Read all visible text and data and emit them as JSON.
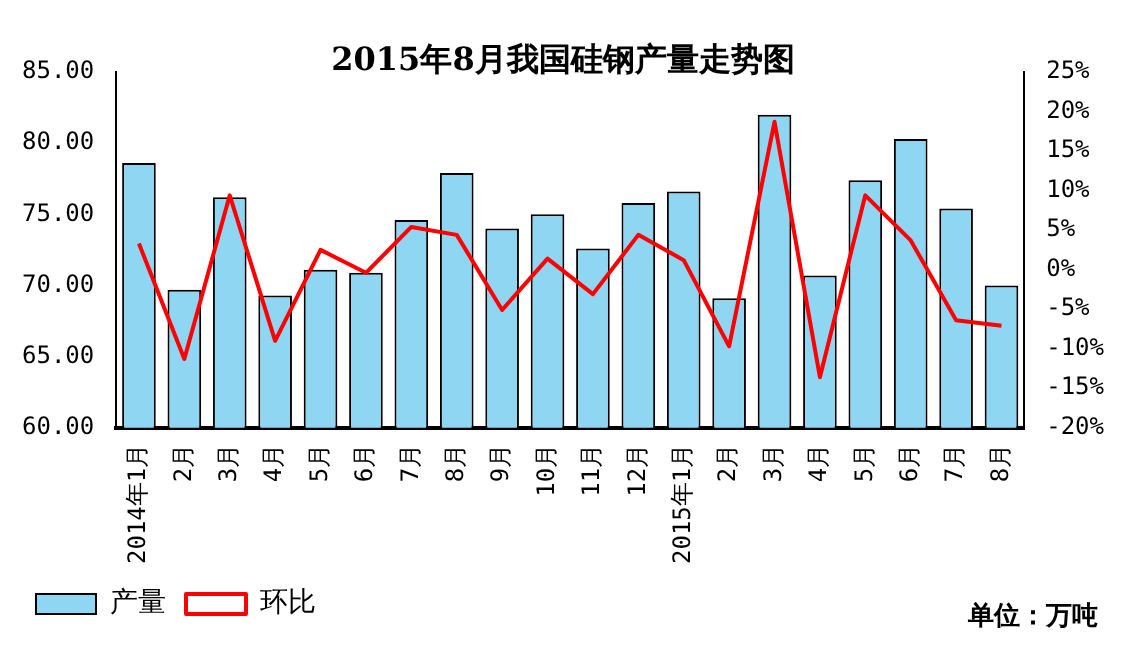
{
  "chart_data": {
    "type": "bar",
    "title": "2015年8月我国硅钢产量走势图",
    "categories": [
      "2014年1月",
      "2月",
      "3月",
      "4月",
      "5月",
      "6月",
      "7月",
      "8月",
      "9月",
      "10月",
      "11月",
      "12月",
      "2015年1月",
      "2月",
      "3月",
      "4月",
      "5月",
      "6月",
      "7月",
      "8月"
    ],
    "series": [
      {
        "name": "产量",
        "color": "#8fd6f2",
        "values": [
          78.6,
          69.7,
          76.2,
          69.3,
          71.1,
          70.9,
          74.6,
          77.9,
          74.0,
          75.0,
          72.6,
          75.8,
          76.6,
          69.1,
          82.0,
          70.7,
          77.4,
          80.3,
          75.4,
          70.0
        ]
      },
      {
        "name": "环比",
        "type": "line",
        "axis": "y2",
        "color": "#ff0000",
        "values": [
          3.3,
          -11.3,
          9.4,
          -9.0,
          2.5,
          -0.4,
          5.4,
          4.4,
          -5.1,
          1.4,
          -3.1,
          4.4,
          1.2,
          -9.7,
          18.7,
          -13.6,
          9.4,
          3.7,
          -6.4,
          -7.1
        ]
      }
    ],
    "ylim": [
      60,
      85
    ],
    "yticks": [
      {
        "value": 60,
        "label": "60.00"
      },
      {
        "value": 65,
        "label": "65.00"
      },
      {
        "value": 70,
        "label": "70.00"
      },
      {
        "value": 75,
        "label": "75.00"
      },
      {
        "value": 80,
        "label": "80.00"
      },
      {
        "value": 85,
        "label": "85.00"
      }
    ],
    "y2lim": [
      -20,
      25
    ],
    "y2ticks": [
      {
        "value": -20,
        "label": "-20%"
      },
      {
        "value": -15,
        "label": "-15%"
      },
      {
        "value": -10,
        "label": "-10%"
      },
      {
        "value": -5,
        "label": "-5%"
      },
      {
        "value": 0,
        "label": "0%"
      },
      {
        "value": 5,
        "label": "5%"
      },
      {
        "value": 10,
        "label": "10%"
      },
      {
        "value": 15,
        "label": "15%"
      },
      {
        "value": 20,
        "label": "20%"
      },
      {
        "value": 25,
        "label": "25%"
      }
    ],
    "annotations": [
      "单位：万吨"
    ],
    "legend": "bottom",
    "grid": false,
    "marker": "none",
    "line_style": "solid"
  }
}
